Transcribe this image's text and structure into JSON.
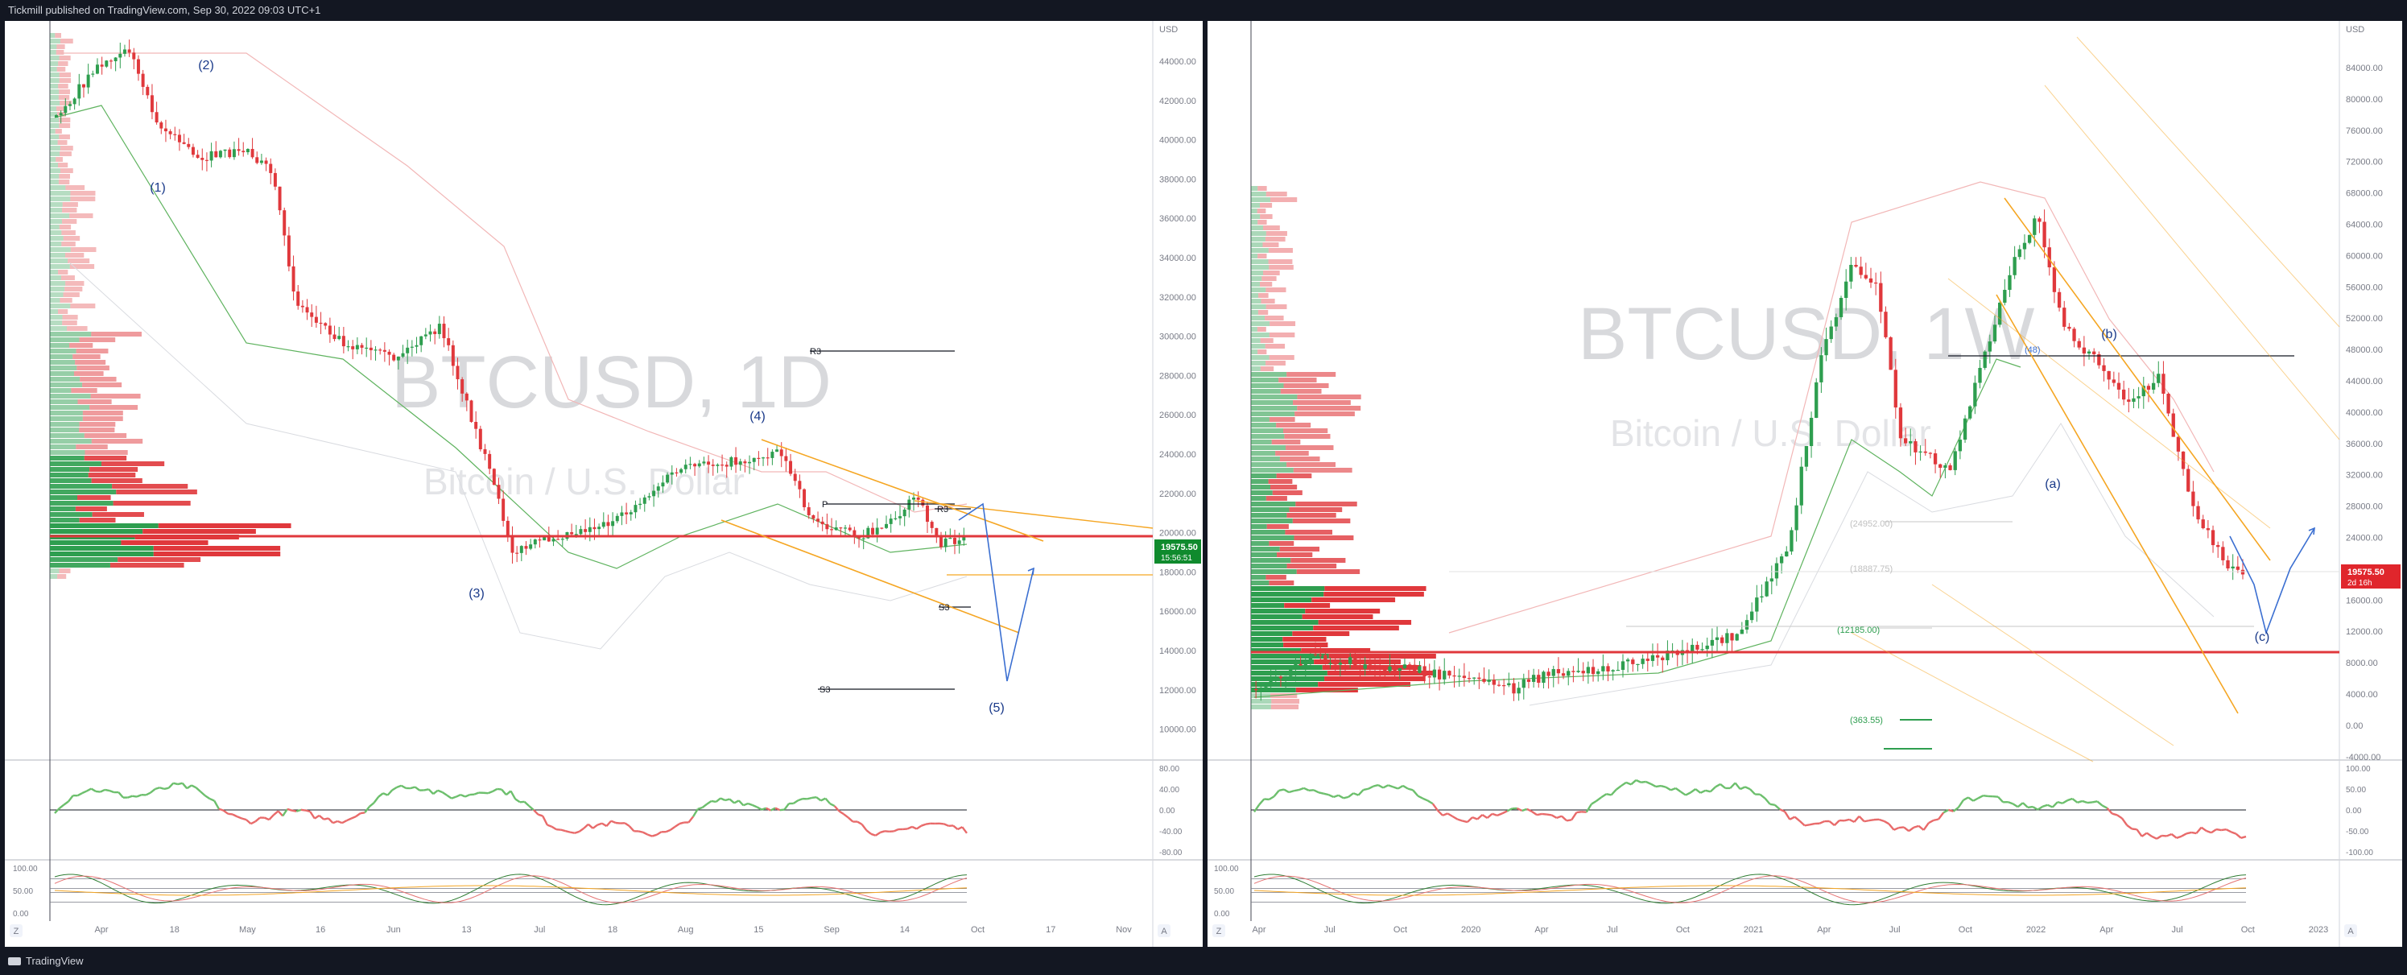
{
  "header": {
    "published_by": "Tickmill published on TradingView.com, Sep 30, 2022 09:03 UTC+1"
  },
  "footer": {
    "brand": "TradingView",
    "logo_icon": "tradingview-logo-icon"
  },
  "colors": {
    "up": "#2e9e4f",
    "down": "#e0383c",
    "osc_up": "#6cbf6c",
    "osc_down": "#e86a6a",
    "orange": "#f5a623",
    "blue": "#3b6fd1",
    "price_tag": "#0f8a2d",
    "price_tag_down": "#e0262c",
    "text": "#131722"
  },
  "left_chart": {
    "watermark_symbol": "BTCUSD, 1D",
    "watermark_name": "Bitcoin / U.S. Dollar",
    "currency": "USD",
    "last_price": "19575.50",
    "countdown": "15:56:51",
    "y_ticks": [
      "44000.00",
      "42000.00",
      "40000.00",
      "38000.00",
      "36000.00",
      "34000.00",
      "32000.00",
      "30000.00",
      "28000.00",
      "26000.00",
      "24000.00",
      "22000.00",
      "20000.00",
      "18000.00",
      "16000.00",
      "14000.00",
      "12000.00",
      "10000.00"
    ],
    "x_ticks": [
      "Apr",
      "18",
      "May",
      "16",
      "Jun",
      "13",
      "Jul",
      "18",
      "Aug",
      "15",
      "Sep",
      "14",
      "Oct",
      "17",
      "Nov"
    ],
    "wave_labels": [
      "(1)",
      "(2)",
      "(3)",
      "(4)",
      "(5)"
    ],
    "pivot_labels": [
      "R3",
      "P",
      "R3",
      "S3",
      "S3"
    ],
    "rsi_ticks": [
      "80.00",
      "40.00",
      "0.00",
      "-40.00",
      "-80.00"
    ],
    "stoch_ticks": [
      "100.00",
      "50.00",
      "0.00"
    ],
    "axis_buttons": [
      "Z",
      "A"
    ]
  },
  "right_chart": {
    "watermark_symbol": "BTCUSD, 1W",
    "watermark_name": "Bitcoin / U.S. Dollar",
    "currency": "USD",
    "last_price": "19575.50",
    "countdown": "2d 16h",
    "y_ticks": [
      "84000.00",
      "80000.00",
      "76000.00",
      "72000.00",
      "68000.00",
      "64000.00",
      "60000.00",
      "56000.00",
      "52000.00",
      "48000.00",
      "44000.00",
      "40000.00",
      "36000.00",
      "32000.00",
      "28000.00",
      "24000.00",
      "20000.00",
      "16000.00",
      "12000.00",
      "8000.00",
      "4000.00",
      "0.00",
      "-4000.00"
    ],
    "x_ticks": [
      "Apr",
      "Jul",
      "Oct",
      "2020",
      "Apr",
      "Jul",
      "Oct",
      "2021",
      "Apr",
      "Jul",
      "Oct",
      "2022",
      "Apr",
      "Jul",
      "Oct",
      "2023"
    ],
    "wave_labels": [
      "(a)",
      "(b)",
      "(c)"
    ],
    "fib_labels": [
      "(48)",
      "(24952.00)",
      "(18887.75)",
      "(12185.00)",
      "(363.55)"
    ],
    "rsi_ticks": [
      "100.00",
      "50.00",
      "0.00",
      "-50.00",
      "-100.00"
    ],
    "stoch_ticks": [
      "100.00",
      "50.00",
      "0.00"
    ],
    "axis_buttons": [
      "Z",
      "A"
    ]
  }
}
